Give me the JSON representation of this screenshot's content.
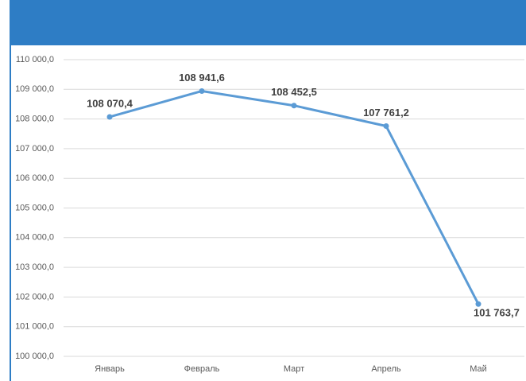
{
  "chart_data": {
    "type": "line",
    "categories": [
      "Январь",
      "Февраль",
      "Март",
      "Апрель",
      "Май"
    ],
    "series": [
      {
        "name": null,
        "color": "#5b9bd5",
        "values": [
          108070.4,
          108941.6,
          108452.5,
          107761.2,
          101763.7
        ],
        "value_labels": [
          "108 070,4",
          "108 941,6",
          "108 452,5",
          "107 761,2",
          "101 763,7"
        ]
      }
    ],
    "ylim": [
      100000,
      110000
    ],
    "yticks": [
      {
        "value": 100000,
        "label": "100 000,0"
      },
      {
        "value": 101000,
        "label": "101 000,0"
      },
      {
        "value": 102000,
        "label": "102 000,0"
      },
      {
        "value": 103000,
        "label": "103 000,0"
      },
      {
        "value": 104000,
        "label": "104 000,0"
      },
      {
        "value": 105000,
        "label": "105 000,0"
      },
      {
        "value": 106000,
        "label": "106 000,0"
      },
      {
        "value": 107000,
        "label": "107 000,0"
      },
      {
        "value": 108000,
        "label": "108 000,0"
      },
      {
        "value": 109000,
        "label": "109 000,0"
      },
      {
        "value": 110000,
        "label": "110 000,0"
      }
    ],
    "grid": true
  }
}
